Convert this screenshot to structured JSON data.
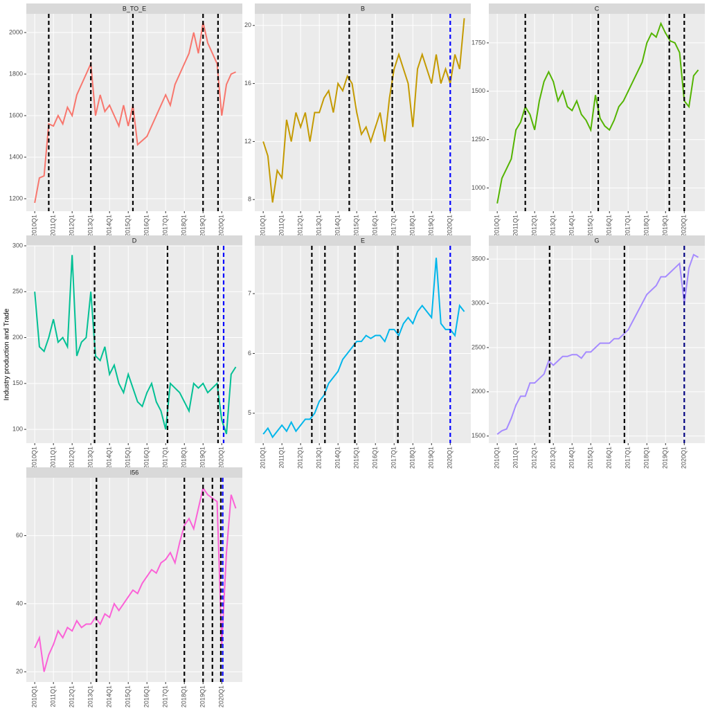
{
  "ylabel": "Industry production and Trade",
  "chart_data": [
    {
      "type": "line",
      "title": "B_TO_E",
      "color": "#F8766D",
      "x": [
        2010,
        2010.25,
        2010.5,
        2010.75,
        2011,
        2011.25,
        2011.5,
        2011.75,
        2012,
        2012.25,
        2012.5,
        2012.75,
        2013,
        2013.25,
        2013.5,
        2013.75,
        2014,
        2014.25,
        2014.5,
        2014.75,
        2015,
        2015.25,
        2015.5,
        2015.75,
        2016,
        2016.25,
        2016.5,
        2016.75,
        2017,
        2017.25,
        2017.5,
        2017.75,
        2018,
        2018.25,
        2018.5,
        2018.75,
        2019,
        2019.25,
        2019.5,
        2019.75,
        2020,
        2020.25,
        2020.5,
        2020.75
      ],
      "values": [
        1180,
        1300,
        1310,
        1560,
        1550,
        1600,
        1560,
        1640,
        1600,
        1700,
        1750,
        1800,
        1850,
        1600,
        1700,
        1620,
        1650,
        1600,
        1550,
        1650,
        1550,
        1650,
        1460,
        1480,
        1500,
        1550,
        1600,
        1650,
        1700,
        1650,
        1750,
        1800,
        1850,
        1900,
        2000,
        1900,
        2050,
        1950,
        1900,
        1850,
        1600,
        1750,
        1800,
        1810
      ],
      "xlim": [
        2009.55,
        2021.1
      ],
      "ylim": [
        1140,
        2090
      ],
      "yticks": [
        1200,
        1400,
        1600,
        1800,
        2000
      ],
      "xticks": [
        {
          "value": 2010,
          "label": "2010Q1"
        },
        {
          "value": 2011,
          "label": "2011Q1"
        },
        {
          "value": 2012,
          "label": "2012Q1"
        },
        {
          "value": 2013,
          "label": "2013Q1"
        },
        {
          "value": 2014,
          "label": "2014Q1"
        },
        {
          "value": 2015,
          "label": "2015Q1"
        },
        {
          "value": 2016,
          "label": "2016Q1"
        },
        {
          "value": 2017,
          "label": "2017Q1"
        },
        {
          "value": 2018,
          "label": "2018Q1"
        },
        {
          "value": 2019,
          "label": "2019Q1"
        },
        {
          "value": 2020,
          "label": "2020Q1"
        }
      ],
      "vlines": [
        {
          "x": 2010.75,
          "color": "#000000"
        },
        {
          "x": 2013.0,
          "color": "#000000"
        },
        {
          "x": 2015.25,
          "color": "#000000"
        },
        {
          "x": 2019.0,
          "color": "#000000"
        },
        {
          "x": 2019.8,
          "color": "#000000"
        }
      ]
    },
    {
      "type": "line",
      "title": "B",
      "color": "#C49A00",
      "x": [
        2010,
        2010.25,
        2010.5,
        2010.75,
        2011,
        2011.25,
        2011.5,
        2011.75,
        2012,
        2012.25,
        2012.5,
        2012.75,
        2013,
        2013.25,
        2013.5,
        2013.75,
        2014,
        2014.25,
        2014.5,
        2014.75,
        2015,
        2015.25,
        2015.5,
        2015.75,
        2016,
        2016.25,
        2016.5,
        2016.75,
        2017,
        2017.25,
        2017.5,
        2017.75,
        2018,
        2018.25,
        2018.5,
        2018.75,
        2019,
        2019.25,
        2019.5,
        2019.75,
        2020,
        2020.25,
        2020.5,
        2020.75
      ],
      "values": [
        12,
        11,
        7.8,
        10,
        9.5,
        13.5,
        12,
        14,
        13,
        14,
        12,
        14,
        14,
        15,
        15.5,
        14,
        16,
        15.5,
        16.5,
        16,
        14,
        12.5,
        13,
        12,
        13,
        14,
        12,
        15,
        17,
        18,
        17,
        16,
        13,
        17,
        18,
        17,
        16,
        18,
        16,
        17,
        16,
        18,
        17,
        20.5
      ],
      "xlim": [
        2009.55,
        2021.1
      ],
      "ylim": [
        7.2,
        20.8
      ],
      "yticks": [
        8,
        12,
        16,
        20
      ],
      "xticks": [
        {
          "value": 2010,
          "label": "2010Q1"
        },
        {
          "value": 2011,
          "label": "2011Q1"
        },
        {
          "value": 2012,
          "label": "2012Q1"
        },
        {
          "value": 2013,
          "label": "2013Q1"
        },
        {
          "value": 2014,
          "label": "2014Q1"
        },
        {
          "value": 2015,
          "label": "2015Q1"
        },
        {
          "value": 2016,
          "label": "2016Q1"
        },
        {
          "value": 2017,
          "label": "2017Q1"
        },
        {
          "value": 2018,
          "label": "2018Q1"
        },
        {
          "value": 2019,
          "label": "2019Q1"
        },
        {
          "value": 2020,
          "label": "2020Q1"
        }
      ],
      "vlines": [
        {
          "x": 2014.6,
          "color": "#000000"
        },
        {
          "x": 2016.9,
          "color": "#000000"
        },
        {
          "x": 2020.0,
          "color": "#0000FF"
        }
      ]
    },
    {
      "type": "line",
      "title": "C",
      "color": "#53B400",
      "x": [
        2010,
        2010.25,
        2010.5,
        2010.75,
        2011,
        2011.25,
        2011.5,
        2011.75,
        2012,
        2012.25,
        2012.5,
        2012.75,
        2013,
        2013.25,
        2013.5,
        2013.75,
        2014,
        2014.25,
        2014.5,
        2014.75,
        2015,
        2015.25,
        2015.5,
        2015.75,
        2016,
        2016.25,
        2016.5,
        2016.75,
        2017,
        2017.25,
        2017.5,
        2017.75,
        2018,
        2018.25,
        2018.5,
        2018.75,
        2019,
        2019.25,
        2019.5,
        2019.75,
        2020,
        2020.25,
        2020.5,
        2020.75
      ],
      "values": [
        920,
        1050,
        1100,
        1150,
        1300,
        1340,
        1420,
        1380,
        1300,
        1450,
        1550,
        1600,
        1550,
        1450,
        1500,
        1420,
        1400,
        1450,
        1380,
        1350,
        1300,
        1480,
        1360,
        1320,
        1300,
        1350,
        1420,
        1450,
        1500,
        1550,
        1600,
        1650,
        1750,
        1800,
        1780,
        1850,
        1800,
        1760,
        1750,
        1700,
        1450,
        1420,
        1580,
        1610
      ],
      "xlim": [
        2009.55,
        2021.1
      ],
      "ylim": [
        880,
        1900
      ],
      "yticks": [
        1000,
        1250,
        1500,
        1750
      ],
      "xticks": [
        {
          "value": 2010,
          "label": "2010Q1"
        },
        {
          "value": 2011,
          "label": "2011Q1"
        },
        {
          "value": 2012,
          "label": "2012Q1"
        },
        {
          "value": 2013,
          "label": "2013Q1"
        },
        {
          "value": 2014,
          "label": "2014Q1"
        },
        {
          "value": 2015,
          "label": "2015Q1"
        },
        {
          "value": 2016,
          "label": "2016Q1"
        },
        {
          "value": 2017,
          "label": "2017Q1"
        },
        {
          "value": 2018,
          "label": "2018Q1"
        },
        {
          "value": 2019,
          "label": "2019Q1"
        },
        {
          "value": 2020,
          "label": "2020Q1"
        }
      ],
      "vlines": [
        {
          "x": 2011.5,
          "color": "#000000"
        },
        {
          "x": 2015.4,
          "color": "#000000"
        },
        {
          "x": 2019.2,
          "color": "#000000"
        },
        {
          "x": 2020.0,
          "color": "#000000"
        }
      ]
    },
    {
      "type": "line",
      "title": "D",
      "color": "#00C094",
      "x": [
        2010,
        2010.25,
        2010.5,
        2010.75,
        2011,
        2011.25,
        2011.5,
        2011.75,
        2012,
        2012.25,
        2012.5,
        2012.75,
        2013,
        2013.25,
        2013.5,
        2013.75,
        2014,
        2014.25,
        2014.5,
        2014.75,
        2015,
        2015.25,
        2015.5,
        2015.75,
        2016,
        2016.25,
        2016.5,
        2016.75,
        2017,
        2017.25,
        2017.5,
        2017.75,
        2018,
        2018.25,
        2018.5,
        2018.75,
        2019,
        2019.25,
        2019.5,
        2019.75,
        2020,
        2020.25,
        2020.5,
        2020.75
      ],
      "values": [
        250,
        190,
        185,
        200,
        220,
        195,
        200,
        190,
        290,
        180,
        195,
        200,
        250,
        180,
        175,
        190,
        160,
        170,
        150,
        140,
        160,
        145,
        130,
        125,
        140,
        150,
        130,
        120,
        100,
        150,
        145,
        140,
        130,
        120,
        150,
        145,
        150,
        140,
        145,
        150,
        110,
        95,
        160,
        168
      ],
      "xlim": [
        2009.55,
        2021.1
      ],
      "ylim": [
        85,
        300
      ],
      "yticks": [
        100,
        150,
        200,
        250,
        300
      ],
      "xticks": [
        {
          "value": 2010,
          "label": "2010Q1"
        },
        {
          "value": 2011,
          "label": "2011Q1"
        },
        {
          "value": 2012,
          "label": "2012Q1"
        },
        {
          "value": 2013,
          "label": "2013Q1"
        },
        {
          "value": 2014,
          "label": "2014Q1"
        },
        {
          "value": 2015,
          "label": "2015Q1"
        },
        {
          "value": 2016,
          "label": "2016Q1"
        },
        {
          "value": 2017,
          "label": "2017Q1"
        },
        {
          "value": 2018,
          "label": "2018Q1"
        },
        {
          "value": 2019,
          "label": "2019Q1"
        },
        {
          "value": 2020,
          "label": "2020Q1"
        }
      ],
      "vlines": [
        {
          "x": 2013.2,
          "color": "#000000"
        },
        {
          "x": 2017.1,
          "color": "#000000"
        },
        {
          "x": 2019.8,
          "color": "#000000"
        },
        {
          "x": 2020.1,
          "color": "#0000FF"
        }
      ]
    },
    {
      "type": "line",
      "title": "E",
      "color": "#00B6EB",
      "x": [
        2010,
        2010.25,
        2010.5,
        2010.75,
        2011,
        2011.25,
        2011.5,
        2011.75,
        2012,
        2012.25,
        2012.5,
        2012.75,
        2013,
        2013.25,
        2013.5,
        2013.75,
        2014,
        2014.25,
        2014.5,
        2014.75,
        2015,
        2015.25,
        2015.5,
        2015.75,
        2016,
        2016.25,
        2016.5,
        2016.75,
        2017,
        2017.25,
        2017.5,
        2017.75,
        2018,
        2018.25,
        2018.5,
        2018.75,
        2019,
        2019.25,
        2019.5,
        2019.75,
        2020,
        2020.25,
        2020.5,
        2020.75
      ],
      "values": [
        4.65,
        4.75,
        4.6,
        4.7,
        4.8,
        4.7,
        4.85,
        4.7,
        4.8,
        4.9,
        4.9,
        5.0,
        5.2,
        5.3,
        5.5,
        5.6,
        5.7,
        5.9,
        6.0,
        6.1,
        6.2,
        6.2,
        6.3,
        6.25,
        6.3,
        6.3,
        6.2,
        6.4,
        6.4,
        6.3,
        6.5,
        6.6,
        6.5,
        6.7,
        6.8,
        6.7,
        6.6,
        7.6,
        6.5,
        6.4,
        6.4,
        6.3,
        6.8,
        6.7
      ],
      "xlim": [
        2009.55,
        2021.1
      ],
      "ylim": [
        4.5,
        7.8
      ],
      "yticks": [
        5,
        6,
        7
      ],
      "xticks": [
        {
          "value": 2010,
          "label": "2010Q1"
        },
        {
          "value": 2011,
          "label": "2011Q1"
        },
        {
          "value": 2012,
          "label": "2012Q1"
        },
        {
          "value": 2013,
          "label": "2013Q1"
        },
        {
          "value": 2014,
          "label": "2014Q1"
        },
        {
          "value": 2015,
          "label": "2015Q1"
        },
        {
          "value": 2016,
          "label": "2016Q1"
        },
        {
          "value": 2017,
          "label": "2017Q1"
        },
        {
          "value": 2018,
          "label": "2018Q1"
        },
        {
          "value": 2019,
          "label": "2019Q1"
        },
        {
          "value": 2020,
          "label": "2020Q1"
        }
      ],
      "vlines": [
        {
          "x": 2012.6,
          "color": "#000000"
        },
        {
          "x": 2013.3,
          "color": "#000000"
        },
        {
          "x": 2014.9,
          "color": "#000000"
        },
        {
          "x": 2017.2,
          "color": "#000000"
        },
        {
          "x": 2020.0,
          "color": "#0000FF"
        }
      ]
    },
    {
      "type": "line",
      "title": "G",
      "color": "#A58AFF",
      "x": [
        2010,
        2010.25,
        2010.5,
        2010.75,
        2011,
        2011.25,
        2011.5,
        2011.75,
        2012,
        2012.25,
        2012.5,
        2012.75,
        2013,
        2013.25,
        2013.5,
        2013.75,
        2014,
        2014.25,
        2014.5,
        2014.75,
        2015,
        2015.25,
        2015.5,
        2015.75,
        2016,
        2016.25,
        2016.5,
        2016.75,
        2017,
        2017.25,
        2017.5,
        2017.75,
        2018,
        2018.25,
        2018.5,
        2018.75,
        2019,
        2019.25,
        2019.5,
        2019.75,
        2020,
        2020.25,
        2020.5,
        2020.75
      ],
      "values": [
        1520,
        1560,
        1580,
        1700,
        1850,
        1950,
        1950,
        2100,
        2100,
        2150,
        2200,
        2350,
        2300,
        2350,
        2400,
        2400,
        2420,
        2420,
        2380,
        2450,
        2450,
        2500,
        2550,
        2550,
        2550,
        2600,
        2600,
        2650,
        2700,
        2800,
        2900,
        3000,
        3100,
        3150,
        3200,
        3300,
        3300,
        3350,
        3400,
        3450,
        3000,
        3400,
        3550,
        3520
      ],
      "xlim": [
        2009.55,
        2021.1
      ],
      "ylim": [
        1420,
        3650
      ],
      "yticks": [
        1500,
        2000,
        2500,
        3000,
        3500
      ],
      "xticks": [
        {
          "value": 2010,
          "label": "2010Q1"
        },
        {
          "value": 2011,
          "label": "2011Q1"
        },
        {
          "value": 2012,
          "label": "2012Q1"
        },
        {
          "value": 2013,
          "label": "2013Q1"
        },
        {
          "value": 2014,
          "label": "2014Q1"
        },
        {
          "value": 2015,
          "label": "2015Q1"
        },
        {
          "value": 2016,
          "label": "2016Q1"
        },
        {
          "value": 2017,
          "label": "2017Q1"
        },
        {
          "value": 2018,
          "label": "2018Q1"
        },
        {
          "value": 2019,
          "label": "2019Q1"
        },
        {
          "value": 2020,
          "label": "2020Q1"
        }
      ],
      "vlines": [
        {
          "x": 2012.8,
          "color": "#000000"
        },
        {
          "x": 2016.8,
          "color": "#000000"
        },
        {
          "x": 2020.0,
          "color": "#000080"
        }
      ]
    },
    {
      "type": "line",
      "title": "I56",
      "color": "#FB61D7",
      "x": [
        2010,
        2010.25,
        2010.5,
        2010.75,
        2011,
        2011.25,
        2011.5,
        2011.75,
        2012,
        2012.25,
        2012.5,
        2012.75,
        2013,
        2013.25,
        2013.5,
        2013.75,
        2014,
        2014.25,
        2014.5,
        2014.75,
        2015,
        2015.25,
        2015.5,
        2015.75,
        2016,
        2016.25,
        2016.5,
        2016.75,
        2017,
        2017.25,
        2017.5,
        2017.75,
        2018,
        2018.25,
        2018.5,
        2018.75,
        2019,
        2019.25,
        2019.5,
        2019.75,
        2020,
        2020.25,
        2020.5,
        2020.75
      ],
      "values": [
        27,
        30,
        20,
        25,
        28,
        32,
        30,
        33,
        32,
        35,
        33,
        34,
        34,
        36,
        34,
        37,
        36,
        40,
        38,
        40,
        42,
        44,
        43,
        46,
        48,
        50,
        49,
        52,
        53,
        55,
        52,
        58,
        63,
        65,
        62,
        68,
        74,
        72,
        71,
        70,
        28,
        55,
        72,
        68
      ],
      "xlim": [
        2009.55,
        2021.1
      ],
      "ylim": [
        17,
        77
      ],
      "yticks": [
        20,
        40,
        60
      ],
      "xticks": [
        {
          "value": 2010,
          "label": "2010Q1"
        },
        {
          "value": 2011,
          "label": "2011Q1"
        },
        {
          "value": 2012,
          "label": "2012Q1"
        },
        {
          "value": 2013,
          "label": "2013Q1"
        },
        {
          "value": 2014,
          "label": "2014Q1"
        },
        {
          "value": 2015,
          "label": "2015Q1"
        },
        {
          "value": 2016,
          "label": "2016Q1"
        },
        {
          "value": 2017,
          "label": "2017Q1"
        },
        {
          "value": 2018,
          "label": "2018Q1"
        },
        {
          "value": 2019,
          "label": "2019Q1"
        },
        {
          "value": 2020,
          "label": "2020Q1"
        }
      ],
      "vlines": [
        {
          "x": 2013.3,
          "color": "#000000"
        },
        {
          "x": 2018.0,
          "color": "#000000"
        },
        {
          "x": 2019.0,
          "color": "#000000"
        },
        {
          "x": 2019.5,
          "color": "#000000"
        },
        {
          "x": 2019.95,
          "color": "#000000"
        },
        {
          "x": 2020.05,
          "color": "#0000FF"
        }
      ]
    }
  ]
}
